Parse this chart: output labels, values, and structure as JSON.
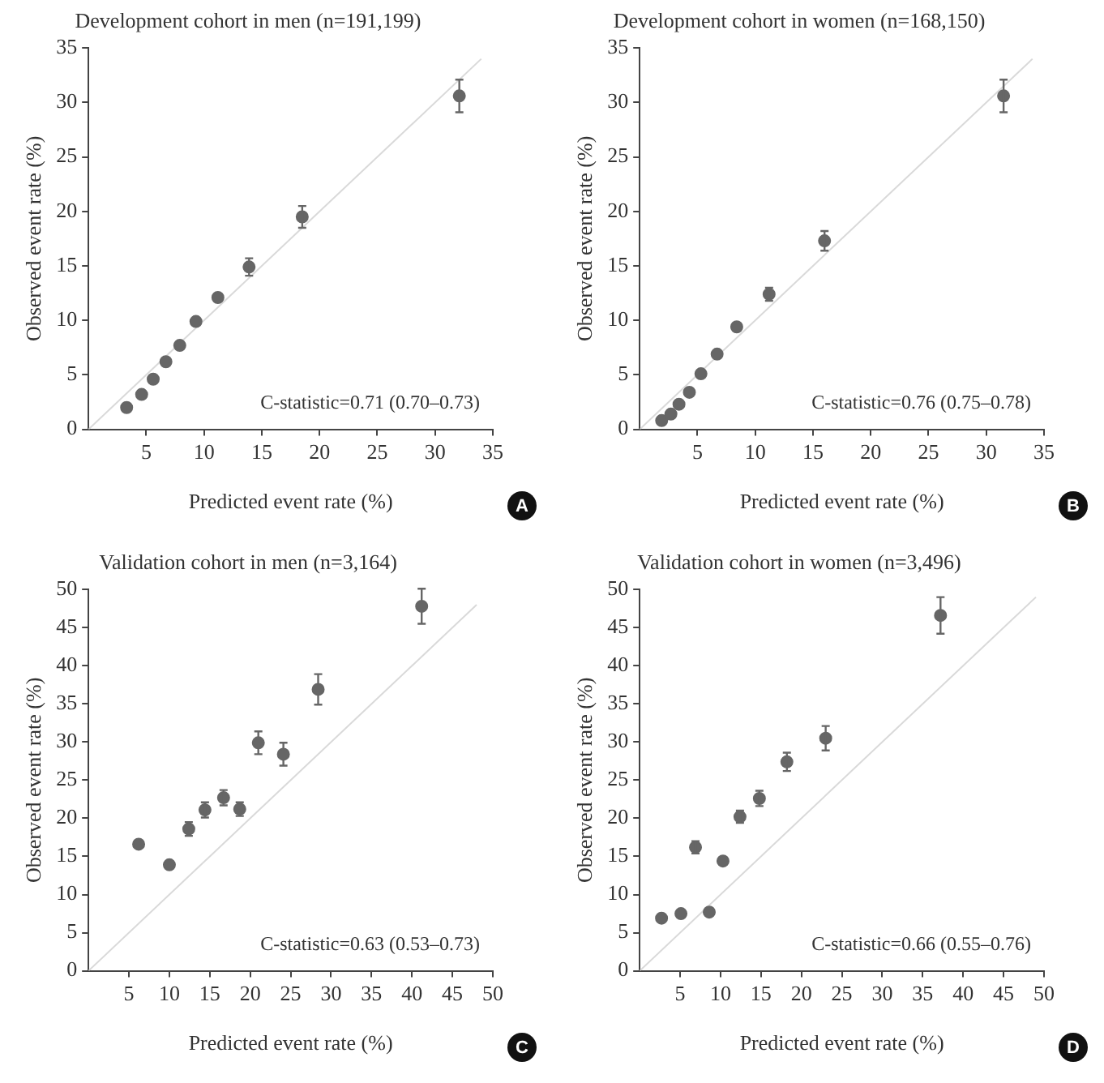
{
  "chart_data": [
    {
      "type": "scatter",
      "title": "Development cohort in men (n=191,199)",
      "xlabel": "Predicted event rate (%)",
      "ylabel": "Observed event rate (%)",
      "series": [
        {
          "color": "#666666",
          "marker": "circle",
          "x": [
            3.3,
            4.6,
            5.6,
            6.7,
            7.9,
            9.3,
            11.2,
            13.9,
            18.5,
            32.1
          ],
          "values": [
            2.0,
            3.2,
            4.6,
            6.2,
            7.7,
            9.9,
            12.1,
            14.9,
            19.5,
            30.6
          ],
          "errors": [
            null,
            null,
            null,
            null,
            null,
            null,
            null,
            0.8,
            1.0,
            1.5
          ]
        },
        {
          "type": "line",
          "marker": "none",
          "color": "#d9d9d9",
          "x": [
            0,
            34
          ],
          "values": [
            0,
            34
          ]
        }
      ],
      "xlim": [
        0,
        35
      ],
      "xticks": [
        5,
        10,
        15,
        20,
        25,
        30,
        35
      ],
      "ylim": [
        0,
        35
      ],
      "yticks": [
        0,
        5,
        10,
        15,
        20,
        25,
        30,
        35
      ],
      "grid": false,
      "legend": false,
      "annotations": [
        "C-statistic=0.71 (0.70–0.73)",
        "A"
      ]
    },
    {
      "type": "scatter",
      "title": "Development cohort in women (n=168,150)",
      "xlabel": "Predicted event rate (%)",
      "ylabel": "Observed event rate (%)",
      "series": [
        {
          "color": "#666666",
          "marker": "circle",
          "x": [
            1.9,
            2.7,
            3.4,
            4.3,
            5.3,
            6.7,
            8.4,
            11.2,
            16.0,
            31.5
          ],
          "values": [
            0.8,
            1.4,
            2.3,
            3.4,
            5.1,
            6.9,
            9.4,
            12.4,
            17.3,
            30.6
          ],
          "errors": [
            null,
            null,
            null,
            null,
            null,
            null,
            null,
            0.6,
            0.9,
            1.5
          ]
        },
        {
          "type": "line",
          "marker": "none",
          "color": "#d9d9d9",
          "x": [
            0,
            34
          ],
          "values": [
            0,
            34
          ]
        }
      ],
      "xlim": [
        0,
        35
      ],
      "xticks": [
        5,
        10,
        15,
        20,
        25,
        30,
        35
      ],
      "ylim": [
        0,
        35
      ],
      "yticks": [
        0,
        5,
        10,
        15,
        20,
        25,
        30,
        35
      ],
      "grid": false,
      "legend": false,
      "annotations": [
        "C-statistic=0.76 (0.75–0.78)",
        "B"
      ]
    },
    {
      "type": "scatter",
      "title": "Validation cohort in men (n=3,164)",
      "xlabel": "Predicted event rate (%)",
      "ylabel": "Observed event rate (%)",
      "series": [
        {
          "color": "#666666",
          "marker": "circle",
          "x": [
            6.2,
            10.0,
            12.4,
            14.4,
            16.7,
            18.7,
            21.0,
            24.1,
            28.4,
            41.2
          ],
          "values": [
            16.6,
            13.9,
            18.6,
            21.1,
            22.7,
            21.2,
            29.9,
            28.4,
            36.9,
            47.8
          ],
          "errors": [
            null,
            null,
            0.9,
            1.0,
            1.0,
            0.9,
            1.5,
            1.5,
            2.0,
            2.3
          ]
        },
        {
          "type": "line",
          "marker": "none",
          "color": "#d9d9d9",
          "x": [
            0,
            48
          ],
          "values": [
            0,
            48
          ]
        }
      ],
      "xlim": [
        0,
        50
      ],
      "xticks": [
        5,
        10,
        15,
        20,
        25,
        30,
        35,
        40,
        45,
        50
      ],
      "ylim": [
        0,
        50
      ],
      "yticks": [
        0,
        5,
        10,
        15,
        20,
        25,
        30,
        35,
        40,
        45,
        50
      ],
      "grid": false,
      "legend": false,
      "annotations": [
        "C-statistic=0.63 (0.53–0.73)",
        "C"
      ]
    },
    {
      "type": "scatter",
      "title": "Validation cohort in women (n=3,496)",
      "xlabel": "Predicted event rate (%)",
      "ylabel": "Observed event rate (%)",
      "series": [
        {
          "color": "#666666",
          "marker": "circle",
          "x": [
            2.7,
            5.1,
            8.6,
            6.9,
            10.3,
            12.4,
            14.8,
            18.2,
            23.0,
            37.2
          ],
          "values": [
            6.9,
            7.5,
            7.7,
            16.2,
            14.4,
            20.2,
            22.6,
            27.4,
            30.5,
            46.6
          ],
          "errors": [
            null,
            null,
            null,
            0.8,
            null,
            0.8,
            1.0,
            1.2,
            1.6,
            2.4
          ]
        },
        {
          "type": "line",
          "marker": "none",
          "color": "#d9d9d9",
          "x": [
            0,
            49
          ],
          "values": [
            0,
            49
          ]
        }
      ],
      "xlim": [
        0,
        50
      ],
      "xticks": [
        5,
        10,
        15,
        20,
        25,
        30,
        35,
        40,
        45,
        50
      ],
      "ylim": [
        0,
        50
      ],
      "yticks": [
        0,
        5,
        10,
        15,
        20,
        25,
        30,
        35,
        40,
        45,
        50
      ],
      "grid": false,
      "legend": false,
      "annotations": [
        "C-statistic=0.66 (0.55–0.76)",
        "D"
      ]
    }
  ]
}
